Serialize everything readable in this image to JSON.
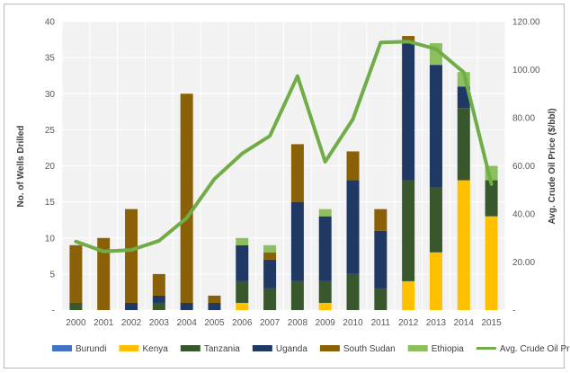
{
  "chart_data": {
    "type": "bar",
    "stacked": true,
    "categories": [
      "2000",
      "2001",
      "2002",
      "2003",
      "2004",
      "2005",
      "2006",
      "2007",
      "2008",
      "2009",
      "2010",
      "2011",
      "2012",
      "2013",
      "2014",
      "2015"
    ],
    "series": [
      {
        "name": "Burundi",
        "color": "#4472c4",
        "values": [
          0,
          0,
          0,
          0,
          0,
          0,
          0,
          0,
          0,
          0,
          0,
          0,
          0,
          0,
          0,
          0
        ]
      },
      {
        "name": "Kenya",
        "color": "#ffc000",
        "values": [
          0,
          0,
          0,
          0,
          0,
          0,
          1,
          0,
          0,
          1,
          0,
          0,
          4,
          8,
          18,
          13
        ]
      },
      {
        "name": "Tanzania",
        "color": "#38572c",
        "values": [
          1,
          0,
          0,
          1,
          0,
          0,
          3,
          3,
          4,
          3,
          5,
          3,
          14,
          9,
          10,
          5
        ]
      },
      {
        "name": "Uganda",
        "color": "#203864",
        "values": [
          0,
          0,
          1,
          1,
          1,
          1,
          5,
          4,
          11,
          9,
          13,
          8,
          19,
          17,
          3,
          0
        ]
      },
      {
        "name": "South Sudan",
        "color": "#8b6107",
        "values": [
          8,
          10,
          13,
          3,
          29,
          1,
          0,
          1,
          8,
          0,
          4,
          3,
          1,
          0,
          0,
          0
        ]
      },
      {
        "name": "Ethiopia",
        "color": "#8dbf5e",
        "values": [
          0,
          0,
          0,
          0,
          0,
          0,
          1,
          1,
          0,
          1,
          0,
          0,
          0,
          3,
          2,
          2
        ]
      }
    ],
    "line_series": {
      "name": "Avg. Crude Oil Price in $/bbl",
      "color": "#70ad47",
      "axis": "right",
      "values": [
        28.5,
        24.4,
        25.0,
        28.8,
        38.3,
        54.5,
        65.1,
        72.4,
        97.3,
        61.7,
        79.4,
        111.3,
        111.7,
        108.6,
        98.9,
        52.4
      ]
    },
    "ylabel": "No. of Wells Drilled",
    "y2label": "Avg. Crude Oil Price ($/bbl)",
    "ylim": [
      0,
      40
    ],
    "y2lim": [
      0,
      120
    ],
    "yticks": [
      "-",
      "5",
      "10",
      "15",
      "20",
      "25",
      "30",
      "35",
      "40"
    ],
    "y2ticks": [
      "-",
      "20.00",
      "40.00",
      "60.00",
      "80.00",
      "100.00",
      "120.00"
    ],
    "grid": true,
    "legend_position": "bottom"
  }
}
